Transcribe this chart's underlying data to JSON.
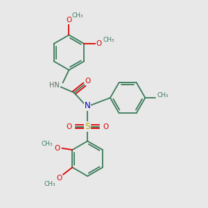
{
  "bg_color": "#e8e8e8",
  "bond_color": "#3a7a5a",
  "N_color": "#0000cc",
  "O_color": "#dd0000",
  "S_color": "#aaaa00",
  "H_color": "#607060",
  "figsize": [
    3.0,
    3.0
  ],
  "dpi": 100,
  "xlim": [
    0,
    10
  ],
  "ylim": [
    0,
    10
  ]
}
